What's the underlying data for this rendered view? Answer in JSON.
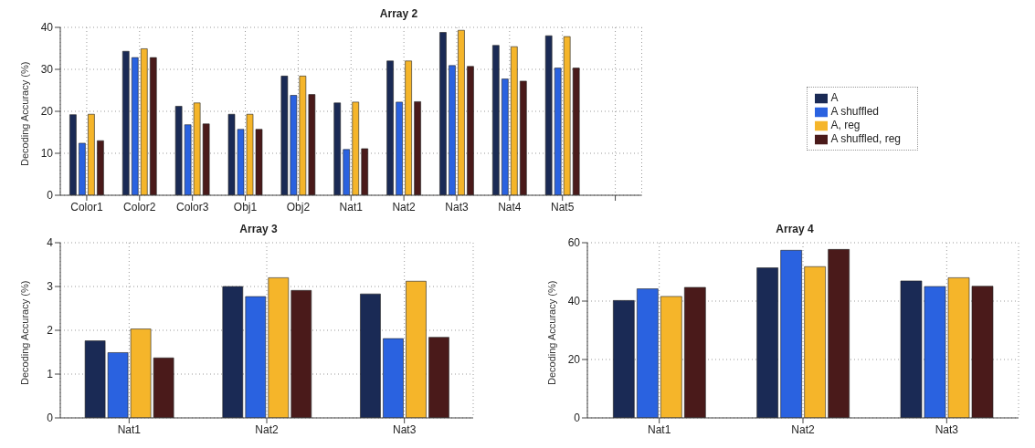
{
  "chart_data": [
    {
      "type": "bar",
      "title": "Array 2",
      "ylabel": "Decoding Accuracy (%)",
      "categories": [
        "Color1",
        "Color2",
        "Color3",
        "Obj1",
        "Obj2",
        "Nat1",
        "Nat2",
        "Nat3",
        "Nat4",
        "Nat5",
        null
      ],
      "ylim": [
        0,
        40
      ],
      "yticks": [
        0,
        10,
        20,
        30,
        40
      ],
      "grid": true,
      "legend": "right",
      "series": [
        {
          "name": "A",
          "color": "#1a2a55",
          "values": [
            19.2,
            34.3,
            21.2,
            19.3,
            28.4,
            22.0,
            32.0,
            38.8,
            35.7,
            38.0,
            null
          ]
        },
        {
          "name": "A shuffled",
          "color": "#2a62e0",
          "values": [
            12.4,
            32.8,
            16.8,
            15.7,
            23.8,
            10.9,
            22.2,
            30.9,
            27.7,
            30.3,
            null
          ]
        },
        {
          "name": "A, reg",
          "color": "#f5b52a",
          "values": [
            19.3,
            34.9,
            22.0,
            19.3,
            28.4,
            22.2,
            32.0,
            39.3,
            35.4,
            37.8,
            null
          ]
        },
        {
          "name": "A shuffled, reg",
          "color": "#4a1a1a",
          "values": [
            13.0,
            32.8,
            17.0,
            15.7,
            24.0,
            11.1,
            22.3,
            30.7,
            27.2,
            30.3,
            null
          ]
        }
      ]
    },
    {
      "type": "bar",
      "title": "Array 3",
      "ylabel": "Decoding Accuracy (%)",
      "categories": [
        "Nat1",
        "Nat2",
        "Nat3"
      ],
      "ylim": [
        0,
        4
      ],
      "yticks": [
        0,
        1,
        2,
        3,
        4
      ],
      "grid": true,
      "series": [
        {
          "color": "#1a2a55",
          "values": [
            1.76,
            3.0,
            2.83
          ]
        },
        {
          "color": "#2a62e0",
          "values": [
            1.49,
            2.77,
            1.81
          ]
        },
        {
          "color": "#f5b52a",
          "values": [
            2.03,
            3.2,
            3.12
          ]
        },
        {
          "color": "#4a1a1a",
          "values": [
            1.37,
            2.91,
            1.84
          ]
        }
      ]
    },
    {
      "type": "bar",
      "title": "Array 4",
      "ylabel": "Decoding Accuracy (%)",
      "categories": [
        "Nat1",
        "Nat2",
        "Nat3"
      ],
      "ylim": [
        0,
        60
      ],
      "yticks": [
        0,
        20,
        40,
        60
      ],
      "grid": true,
      "series": [
        {
          "color": "#1a2a55",
          "values": [
            40.2,
            51.4,
            46.9
          ]
        },
        {
          "color": "#2a62e0",
          "values": [
            44.2,
            57.4,
            45.0
          ]
        },
        {
          "color": "#f5b52a",
          "values": [
            41.6,
            51.8,
            48.0
          ]
        },
        {
          "color": "#4a1a1a",
          "values": [
            44.7,
            57.7,
            45.1
          ]
        }
      ]
    }
  ]
}
